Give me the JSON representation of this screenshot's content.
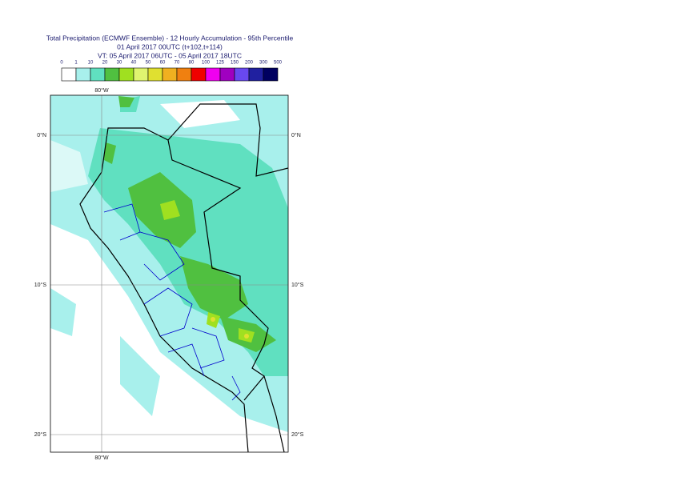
{
  "header": {
    "title": "Total Precipitation (ECMWF Ensemble) - 12 Hourly Accumulation - 95th Percentile",
    "run": "01 April 2017 00UTC (t+102,t+114)",
    "valid": "VT: 05 April 2017 06UTC - 05 April 2017 18UTC"
  },
  "colorbar": {
    "thresholds": [
      "0",
      "1",
      "10",
      "20",
      "30",
      "40",
      "50",
      "60",
      "70",
      "80",
      "100",
      "125",
      "150",
      "200",
      "300",
      "500"
    ],
    "colors": [
      "#ffffff",
      "#a8f0ec",
      "#60e0c0",
      "#50c040",
      "#a0e020",
      "#e0f470",
      "#e0e030",
      "#f0b020",
      "#f08010",
      "#f00000",
      "#f000f0",
      "#a000c0",
      "#6848f0",
      "#2020a0",
      "#000060"
    ]
  },
  "map": {
    "longitude_labels": [
      "80°W"
    ],
    "latitude_labels": [
      "0°N",
      "10°S",
      "20°S"
    ]
  }
}
